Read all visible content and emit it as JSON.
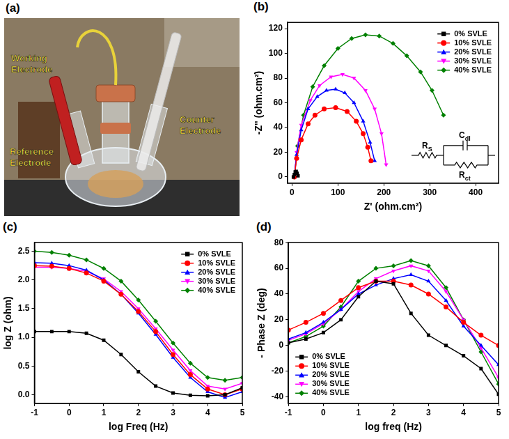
{
  "photo": {
    "panel_label": "(a)",
    "type": "photo",
    "labels": [
      "Working Electrode",
      "Counter Electrode",
      "Reference Electrode"
    ]
  },
  "chart_data": [
    {
      "type": "line",
      "panel_label": "(b)",
      "x_label": "Z' (ohm.cm²)",
      "y_label": "-Z'' (ohm.cm²)",
      "xlim": [
        -10,
        450
      ],
      "ylim": [
        -5,
        125
      ],
      "xticks": [
        0,
        100,
        200,
        300,
        400
      ],
      "yticks": [
        0,
        20,
        40,
        60,
        80,
        100,
        120
      ],
      "grid": false,
      "legend": "upper right",
      "inset": {
        "type": "circuit",
        "labels": [
          "RS",
          "Cdl",
          "Rct"
        ]
      },
      "series": [
        {
          "name": "0% SVLE",
          "color": "#000000",
          "marker": "square",
          "x": [
            3,
            5,
            7,
            9,
            11,
            13
          ],
          "values": [
            0,
            2,
            4,
            4.5,
            3,
            1
          ]
        },
        {
          "name": "10% SVLE",
          "color": "#ff0000",
          "marker": "circle",
          "x": [
            5,
            10,
            20,
            35,
            50,
            70,
            95,
            120,
            140,
            155,
            165,
            172
          ],
          "values": [
            0,
            15,
            30,
            43,
            50,
            55,
            56,
            53,
            45,
            35,
            24,
            13
          ]
        },
        {
          "name": "20% SVLE",
          "color": "#0000ff",
          "marker": "triangle",
          "x": [
            5,
            10,
            20,
            35,
            55,
            75,
            95,
            115,
            135,
            155,
            170,
            180
          ],
          "values": [
            0,
            18,
            38,
            55,
            65,
            70,
            71,
            68,
            60,
            45,
            28,
            13
          ]
        },
        {
          "name": "30% SVLE",
          "color": "#ff00ff",
          "marker": "triangle_down",
          "x": [
            5,
            10,
            20,
            40,
            60,
            85,
            110,
            135,
            160,
            180,
            195,
            205
          ],
          "values": [
            0,
            20,
            42,
            62,
            74,
            81,
            83,
            80,
            70,
            55,
            35,
            10
          ]
        },
        {
          "name": "40% SVLE",
          "color": "#008000",
          "marker": "diamond",
          "x": [
            5,
            12,
            25,
            45,
            70,
            100,
            130,
            160,
            190,
            220,
            250,
            280,
            305,
            330
          ],
          "values": [
            0,
            25,
            50,
            73,
            90,
            104,
            112,
            115,
            114,
            108,
            98,
            85,
            70,
            50
          ]
        }
      ]
    },
    {
      "type": "line",
      "panel_label": "(c)",
      "x_label": "log Freq (Hz)",
      "y_label": "log Z (ohm)",
      "xlim": [
        -1,
        5
      ],
      "ylim": [
        -0.15,
        2.65
      ],
      "xticks": [
        -1,
        0,
        1,
        2,
        3,
        4,
        5
      ],
      "yticks": [
        {
          "value": 0,
          "label": "0.0"
        },
        0.5,
        {
          "value": 1,
          "label": "1.0"
        },
        1.5,
        {
          "value": 2,
          "label": "2.0"
        },
        2.5
      ],
      "grid": false,
      "legend": "upper right",
      "x": [
        -1,
        -0.5,
        0,
        0.5,
        1,
        1.5,
        2,
        2.5,
        3,
        3.5,
        4,
        4.5,
        5
      ],
      "series": [
        {
          "name": "0% SVLE",
          "color": "#000000",
          "marker": "square",
          "values": [
            1.1,
            1.1,
            1.1,
            1.07,
            0.95,
            0.7,
            0.4,
            0.15,
            0.03,
            -0.01,
            -0.02,
            0.0,
            0.12
          ]
        },
        {
          "name": "10% SVLE",
          "color": "#ff0000",
          "marker": "circle",
          "values": [
            2.25,
            2.24,
            2.2,
            2.12,
            1.98,
            1.75,
            1.45,
            1.1,
            0.7,
            0.35,
            0.1,
            0.0,
            0.1
          ]
        },
        {
          "name": "20% SVLE",
          "color": "#0000ff",
          "marker": "triangle",
          "values": [
            2.3,
            2.29,
            2.25,
            2.17,
            2.0,
            1.75,
            1.42,
            1.05,
            0.65,
            0.3,
            0.05,
            -0.05,
            0.05
          ]
        },
        {
          "name": "30% SVLE",
          "color": "#ff00ff",
          "marker": "triangle_down",
          "values": [
            2.22,
            2.22,
            2.2,
            2.15,
            2.02,
            1.8,
            1.5,
            1.15,
            0.78,
            0.42,
            0.15,
            0.1,
            0.2
          ]
        },
        {
          "name": "40% SVLE",
          "color": "#008000",
          "marker": "diamond",
          "values": [
            2.5,
            2.48,
            2.43,
            2.35,
            2.2,
            1.98,
            1.65,
            1.28,
            0.9,
            0.55,
            0.3,
            0.25,
            0.3
          ]
        }
      ]
    },
    {
      "type": "line",
      "panel_label": "(d)",
      "x_label": "log freq (Hz)",
      "y_label": "- Phase Z (deg)",
      "xlim": [
        -1,
        5
      ],
      "ylim": [
        -45,
        80
      ],
      "xticks": [
        -1,
        0,
        1,
        2,
        3,
        4,
        5
      ],
      "yticks": [
        -40,
        -20,
        0,
        20,
        40,
        60,
        80
      ],
      "grid": false,
      "legend": "lower left",
      "x": [
        -1,
        -0.5,
        0,
        0.5,
        1,
        1.5,
        2,
        2.5,
        3,
        3.5,
        4,
        4.5,
        5
      ],
      "series": [
        {
          "name": "0% SVLE",
          "color": "#000000",
          "marker": "square",
          "values": [
            2,
            5,
            10,
            20,
            38,
            50,
            48,
            25,
            8,
            0,
            -8,
            -18,
            -38
          ]
        },
        {
          "name": "10% SVLE",
          "color": "#ff0000",
          "marker": "circle",
          "values": [
            12,
            18,
            25,
            35,
            45,
            50,
            50,
            47,
            40,
            30,
            18,
            8,
            0
          ]
        },
        {
          "name": "20% SVLE",
          "color": "#0000ff",
          "marker": "triangle",
          "values": [
            5,
            10,
            18,
            28,
            40,
            47,
            52,
            55,
            50,
            35,
            15,
            0,
            -15
          ]
        },
        {
          "name": "30% SVLE",
          "color": "#ff00ff",
          "marker": "triangle_down",
          "values": [
            4,
            9,
            17,
            28,
            42,
            52,
            58,
            62,
            58,
            42,
            20,
            -2,
            -25
          ]
        },
        {
          "name": "40% SVLE",
          "color": "#008000",
          "marker": "diamond",
          "values": [
            2,
            7,
            15,
            30,
            50,
            60,
            62,
            66,
            62,
            45,
            20,
            -5,
            -30
          ]
        }
      ]
    }
  ]
}
